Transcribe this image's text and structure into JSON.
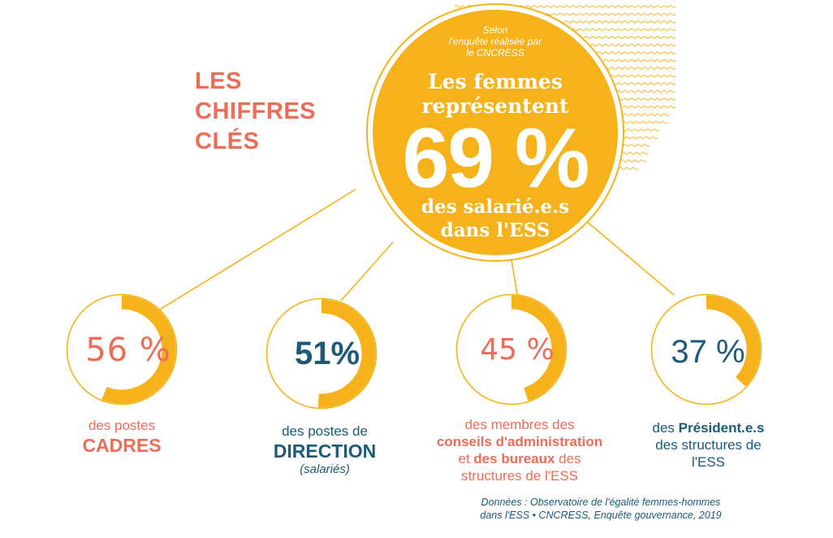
{
  "colors": {
    "orange": "#F5B21A",
    "coral": "#EE6C57",
    "teal": "#1C5A78",
    "white": "#FFFFFF"
  },
  "title": {
    "line1": "LES",
    "line2": "CHIFFRES",
    "line3": "CLÉS"
  },
  "main": {
    "intro_line1": "Selon",
    "intro_line2": "l'enquête réalisée par",
    "intro_line3": "le CNCRESS",
    "head_line1": "Les femmes",
    "head_line2": "représentent",
    "big_value": "69 %",
    "tail_line1": "des salarié.e.s",
    "tail_line2": "dans l'ESS"
  },
  "chart_data": {
    "type": "pie",
    "title": "LES CHIFFRES CLÉS",
    "main_value": 69,
    "series": [
      {
        "value": 56,
        "label": "56 %"
      },
      {
        "value": 51,
        "label": "51%"
      },
      {
        "value": 45,
        "label": "45 %"
      },
      {
        "value": 37,
        "label": "37 %"
      }
    ]
  },
  "captions": {
    "c1": {
      "line1": "des postes",
      "line2": "CADRES"
    },
    "c2": {
      "line1": "des postes de",
      "line2": "DIRECTION",
      "line3": "(salariés)"
    },
    "c3": {
      "line1": "des membres des",
      "line2": "conseils d'administration",
      "line3a": "et ",
      "line3b": "des bureaux",
      "line3c": " des",
      "line4": "structures de l'ESS"
    },
    "c4": {
      "line1a": "des ",
      "line1b": "Président.e.s",
      "line2": "des structures de",
      "line3": "l'ESS"
    }
  },
  "source": {
    "line1": "Données : Observatoire de l'égalité femmes-hommes",
    "line2": "dans l'ESS • CNCRESS, Enquête gouvernance, 2019"
  }
}
